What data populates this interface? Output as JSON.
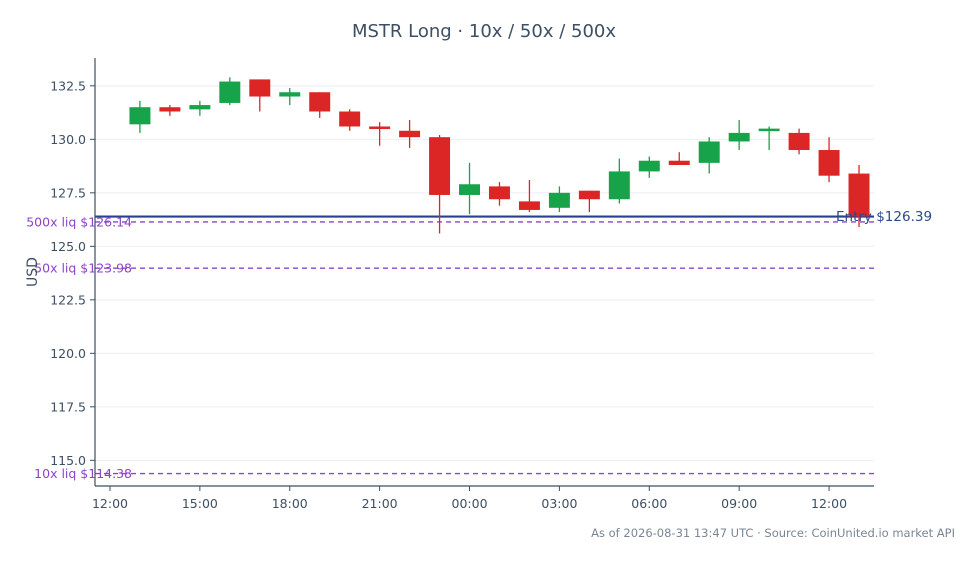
{
  "chart_data": {
    "type": "candlestick",
    "title": "MSTR Long · 10x / 50x / 500x",
    "ylabel": "USD",
    "xlabel": "",
    "ylim": [
      113.8,
      133.8
    ],
    "xlim": [
      11.5,
      37.5
    ],
    "grid": true,
    "footer": "As of 2026-08-31 13:47 UTC · Source: CoinUnited.io market API",
    "x_ticks": [
      {
        "x": 12,
        "label": "12:00"
      },
      {
        "x": 15,
        "label": "15:00"
      },
      {
        "x": 18,
        "label": "18:00"
      },
      {
        "x": 21,
        "label": "21:00"
      },
      {
        "x": 24,
        "label": "00:00"
      },
      {
        "x": 27,
        "label": "03:00"
      },
      {
        "x": 30,
        "label": "06:00"
      },
      {
        "x": 33,
        "label": "09:00"
      },
      {
        "x": 36,
        "label": "12:00"
      }
    ],
    "y_ticks": [
      {
        "y": 115.0,
        "label": "115.0"
      },
      {
        "y": 117.5,
        "label": "117.5"
      },
      {
        "y": 120.0,
        "label": "120.0"
      },
      {
        "y": 122.5,
        "label": "122.5"
      },
      {
        "y": 125.0,
        "label": "125.0"
      },
      {
        "y": 127.5,
        "label": "127.5"
      },
      {
        "y": 130.0,
        "label": "130.0"
      },
      {
        "y": 132.5,
        "label": "132.5"
      }
    ],
    "candles": [
      {
        "x": 13,
        "open": 130.7,
        "high": 131.8,
        "low": 130.3,
        "close": 131.5
      },
      {
        "x": 14,
        "open": 131.5,
        "high": 131.6,
        "low": 131.1,
        "close": 131.3
      },
      {
        "x": 15,
        "open": 131.4,
        "high": 131.8,
        "low": 131.1,
        "close": 131.6
      },
      {
        "x": 16,
        "open": 131.7,
        "high": 132.9,
        "low": 131.6,
        "close": 132.7
      },
      {
        "x": 17,
        "open": 132.8,
        "high": 132.8,
        "low": 131.3,
        "close": 132.0
      },
      {
        "x": 18,
        "open": 132.0,
        "high": 132.4,
        "low": 131.6,
        "close": 132.2
      },
      {
        "x": 19,
        "open": 132.2,
        "high": 132.2,
        "low": 131.0,
        "close": 131.3
      },
      {
        "x": 20,
        "open": 131.3,
        "high": 131.4,
        "low": 130.4,
        "close": 130.6
      },
      {
        "x": 21,
        "open": 130.6,
        "high": 130.8,
        "low": 129.7,
        "close": 130.5
      },
      {
        "x": 22,
        "open": 130.4,
        "high": 130.9,
        "low": 129.6,
        "close": 130.1
      },
      {
        "x": 23,
        "open": 130.1,
        "high": 130.2,
        "low": 125.6,
        "close": 127.4
      },
      {
        "x": 24,
        "open": 127.4,
        "high": 128.9,
        "low": 126.5,
        "close": 127.9
      },
      {
        "x": 25,
        "open": 127.8,
        "high": 128.0,
        "low": 126.9,
        "close": 127.2
      },
      {
        "x": 26,
        "open": 127.1,
        "high": 128.1,
        "low": 126.6,
        "close": 126.7
      },
      {
        "x": 27,
        "open": 126.8,
        "high": 127.8,
        "low": 126.6,
        "close": 127.5
      },
      {
        "x": 28,
        "open": 127.6,
        "high": 127.6,
        "low": 126.6,
        "close": 127.2
      },
      {
        "x": 29,
        "open": 127.2,
        "high": 129.1,
        "low": 127.0,
        "close": 128.5
      },
      {
        "x": 30,
        "open": 128.5,
        "high": 129.2,
        "low": 128.2,
        "close": 129.0
      },
      {
        "x": 31,
        "open": 129.0,
        "high": 129.4,
        "low": 128.8,
        "close": 128.8
      },
      {
        "x": 32,
        "open": 128.9,
        "high": 130.1,
        "low": 128.4,
        "close": 129.9
      },
      {
        "x": 33,
        "open": 129.9,
        "high": 130.9,
        "low": 129.5,
        "close": 130.3
      },
      {
        "x": 34,
        "open": 130.4,
        "high": 130.6,
        "low": 129.5,
        "close": 130.5
      },
      {
        "x": 35,
        "open": 130.3,
        "high": 130.5,
        "low": 129.3,
        "close": 129.5
      },
      {
        "x": 36,
        "open": 129.5,
        "high": 130.1,
        "low": 128.0,
        "close": 128.3
      },
      {
        "x": 37,
        "open": 128.4,
        "high": 128.8,
        "low": 125.9,
        "close": 126.4
      }
    ],
    "reference_lines": [
      {
        "label": "Entry $126.39",
        "y": 126.39,
        "style": "solid",
        "color": "#2b3f8f",
        "label_side": "right"
      },
      {
        "label": "500x liq $126.14",
        "y": 126.14,
        "style": "dashed",
        "color": "#8e44c9",
        "label_side": "left"
      },
      {
        "label": "50x liq $123.98",
        "y": 123.98,
        "style": "dashed",
        "color": "#8e44c9",
        "label_side": "left"
      },
      {
        "label": "10x liq $114.38",
        "y": 114.38,
        "style": "dashed",
        "color": "#8e44c9",
        "label_side": "left"
      }
    ],
    "colors": {
      "up": "#16a34a",
      "down": "#dc2626",
      "axis": "#3d4f63",
      "grid": "#ebeef2",
      "entry": "#2b3f8f",
      "liq": "#8e44c9",
      "entry_label": "#2b4a8a"
    }
  }
}
